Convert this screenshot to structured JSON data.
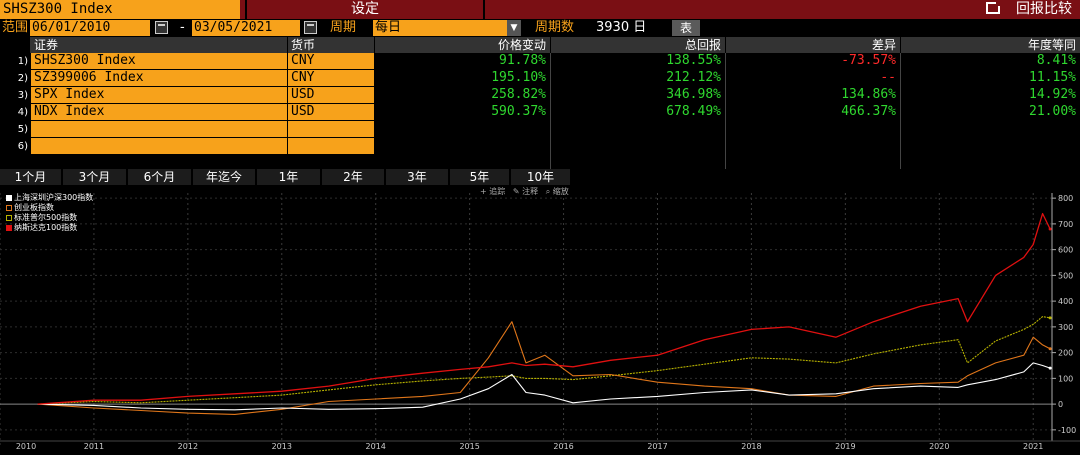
{
  "top": {
    "ticker": "SHSZ300 Index",
    "setup_label": "设定",
    "compare_label": "回报比较"
  },
  "range": {
    "label": "范围",
    "start": "06/01/2010",
    "sep": "-",
    "end": "03/05/2021",
    "period_label": "周期",
    "period_value": "每日",
    "count_label": "周期数",
    "count_value": "3930 日",
    "table_btn": "表"
  },
  "table": {
    "headers": [
      "证券",
      "货币",
      "价格变动",
      "总回报",
      "差异",
      "年度等同"
    ],
    "rows": [
      {
        "n": "1)",
        "sec": "SHSZ300 Index",
        "cur": "CNY",
        "price": "91.78%",
        "total": "138.55%",
        "diff": "-73.57%",
        "annual": "8.41%"
      },
      {
        "n": "2)",
        "sec": "SZ399006 Index",
        "cur": "CNY",
        "price": "195.10%",
        "total": "212.12%",
        "diff": "--",
        "annual": "11.15%"
      },
      {
        "n": "3)",
        "sec": "SPX Index",
        "cur": "USD",
        "price": "258.82%",
        "total": "346.98%",
        "diff": "134.86%",
        "annual": "14.92%"
      },
      {
        "n": "4)",
        "sec": "NDX Index",
        "cur": "USD",
        "price": "590.37%",
        "total": "678.49%",
        "diff": "466.37%",
        "annual": "21.00%"
      },
      {
        "n": "5)",
        "sec": "",
        "cur": "",
        "price": "",
        "total": "",
        "diff": "",
        "annual": ""
      },
      {
        "n": "6)",
        "sec": "",
        "cur": "",
        "price": "",
        "total": "",
        "diff": "",
        "annual": ""
      }
    ]
  },
  "periods": [
    "1个月",
    "3个月",
    "6个月",
    "年迄今",
    "1年",
    "2年",
    "3年",
    "5年",
    "10年"
  ],
  "chart_tools": [
    "追踪",
    "注释",
    "缩放"
  ],
  "colors": {
    "orange": "#f7a21b",
    "green": "#2fd82f",
    "red": "#ff2a2a",
    "series_white": "#ffffff",
    "series_orange": "#e0761a",
    "series_olive": "#b7b200",
    "series_red": "#e01010"
  },
  "chart_data": {
    "type": "line",
    "xlabel": "",
    "ylabel": "",
    "x_ticks": [
      "2010",
      "2011",
      "2012",
      "2013",
      "2014",
      "2015",
      "2016",
      "2017",
      "2018",
      "2019",
      "2020",
      "2021"
    ],
    "y_ticks": [
      -100,
      0,
      100,
      200,
      300,
      400,
      500,
      600,
      700,
      800
    ],
    "ylim": [
      -120,
      820
    ],
    "grid": true,
    "legend_position": "top-left",
    "x": [
      2010.4,
      2011.0,
      2011.5,
      2012.0,
      2012.5,
      2013.0,
      2013.5,
      2014.0,
      2014.5,
      2014.9,
      2015.2,
      2015.45,
      2015.6,
      2015.8,
      2016.1,
      2016.5,
      2017.0,
      2017.5,
      2018.0,
      2018.4,
      2018.9,
      2019.3,
      2019.8,
      2020.2,
      2020.3,
      2020.6,
      2020.9,
      2021.0,
      2021.1,
      2021.18
    ],
    "series": [
      {
        "name": "上海深圳沪深300指数",
        "values": [
          0,
          -5,
          -15,
          -20,
          -22,
          -15,
          -20,
          -18,
          -12,
          20,
          60,
          115,
          45,
          35,
          5,
          20,
          30,
          45,
          55,
          35,
          40,
          60,
          70,
          65,
          75,
          95,
          125,
          160,
          150,
          140
        ]
      },
      {
        "name": "创业板指数",
        "values": [
          0,
          -15,
          -25,
          -35,
          -40,
          -20,
          10,
          20,
          30,
          45,
          180,
          320,
          160,
          190,
          110,
          115,
          85,
          70,
          60,
          35,
          30,
          70,
          80,
          85,
          110,
          160,
          190,
          260,
          230,
          215
        ]
      },
      {
        "name": "标准普尔500指数",
        "values": [
          0,
          10,
          5,
          15,
          25,
          35,
          55,
          75,
          90,
          100,
          105,
          110,
          100,
          100,
          95,
          110,
          130,
          155,
          180,
          175,
          160,
          195,
          230,
          250,
          160,
          245,
          290,
          310,
          340,
          335
        ]
      },
      {
        "name": "纳斯达克100指数",
        "values": [
          0,
          15,
          15,
          30,
          40,
          50,
          70,
          100,
          120,
          135,
          145,
          160,
          150,
          155,
          145,
          170,
          190,
          250,
          290,
          300,
          260,
          320,
          380,
          410,
          320,
          500,
          570,
          620,
          740,
          680
        ]
      }
    ]
  }
}
